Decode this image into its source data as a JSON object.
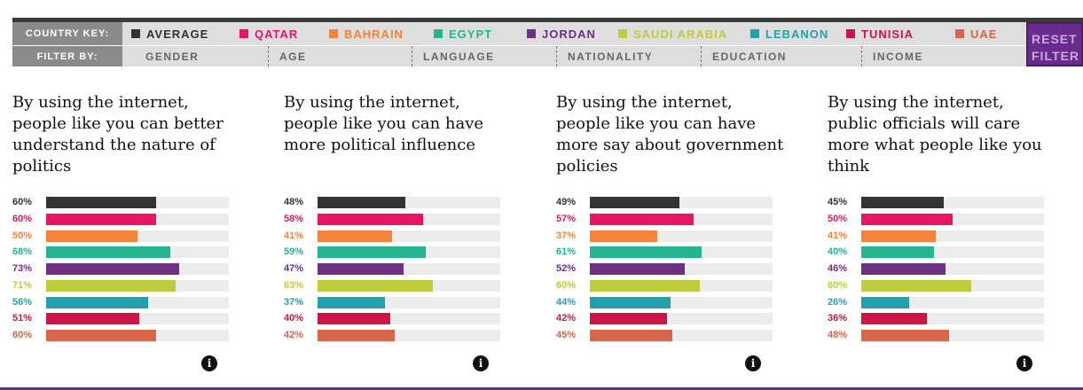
{
  "header": {
    "country_key_label": "COUNTRY KEY:",
    "filter_by_label": "FILTER BY:",
    "reset_line1": "RESET",
    "reset_line2": "FILTER"
  },
  "countries": [
    {
      "name": "AVERAGE",
      "color": "#333333"
    },
    {
      "name": "QATAR",
      "color": "#ec1362"
    },
    {
      "name": "BAHRAIN",
      "color": "#f5843a"
    },
    {
      "name": "EGYPT",
      "color": "#27b58f"
    },
    {
      "name": "JORDAN",
      "color": "#6e2f84"
    },
    {
      "name": "SAUDI ARABIA",
      "color": "#bfcc3c"
    },
    {
      "name": "LEBANON",
      "color": "#22a1ad"
    },
    {
      "name": "TUNISIA",
      "color": "#cf1548"
    },
    {
      "name": "UAE",
      "color": "#d8654c"
    }
  ],
  "filters": [
    "GENDER",
    "AGE",
    "LANGUAGE",
    "NATIONALITY",
    "EDUCATION",
    "INCOME"
  ],
  "chart_data": [
    {
      "type": "bar",
      "orientation": "horizontal",
      "title": "By using the internet, people like you can better understand the nature of politics",
      "categories": [
        "AVERAGE",
        "QATAR",
        "BAHRAIN",
        "EGYPT",
        "JORDAN",
        "SAUDI ARABIA",
        "LEBANON",
        "TUNISIA",
        "UAE"
      ],
      "values": [
        60,
        60,
        50,
        68,
        73,
        71,
        56,
        51,
        60
      ],
      "labels": [
        "60%",
        "60%",
        "50%",
        "68%",
        "73%",
        "71%",
        "56%",
        "51%",
        "60%"
      ],
      "xlim": [
        0,
        100
      ]
    },
    {
      "type": "bar",
      "orientation": "horizontal",
      "title": "By using the internet, people like you can have more political influence",
      "categories": [
        "AVERAGE",
        "QATAR",
        "BAHRAIN",
        "EGYPT",
        "JORDAN",
        "SAUDI ARABIA",
        "LEBANON",
        "TUNISIA",
        "UAE"
      ],
      "values": [
        48,
        58,
        41,
        59,
        47,
        63,
        37,
        40,
        42
      ],
      "labels": [
        "48%",
        "58%",
        "41%",
        "59%",
        "47%",
        "63%",
        "37%",
        "40%",
        "42%"
      ],
      "xlim": [
        0,
        100
      ]
    },
    {
      "type": "bar",
      "orientation": "horizontal",
      "title": "By using the internet, people like you can have more say about government policies",
      "categories": [
        "AVERAGE",
        "QATAR",
        "BAHRAIN",
        "EGYPT",
        "JORDAN",
        "SAUDI ARABIA",
        "LEBANON",
        "TUNISIA",
        "UAE"
      ],
      "values": [
        49,
        57,
        37,
        61,
        52,
        60,
        44,
        42,
        45
      ],
      "labels": [
        "49%",
        "57%",
        "37%",
        "61%",
        "52%",
        "60%",
        "44%",
        "42%",
        "45%"
      ],
      "xlim": [
        0,
        100
      ]
    },
    {
      "type": "bar",
      "orientation": "horizontal",
      "title": "By using the internet, public officials will care more what people like you think",
      "categories": [
        "AVERAGE",
        "QATAR",
        "BAHRAIN",
        "EGYPT",
        "JORDAN",
        "SAUDI ARABIA",
        "LEBANON",
        "TUNISIA",
        "UAE"
      ],
      "values": [
        45,
        50,
        41,
        40,
        46,
        60,
        26,
        36,
        48
      ],
      "labels": [
        "45%",
        "50%",
        "41%",
        "40%",
        "46%",
        "60%",
        "26%",
        "36%",
        "48%"
      ],
      "xlim": [
        0,
        100
      ]
    }
  ],
  "info_icon_glyph": "i"
}
